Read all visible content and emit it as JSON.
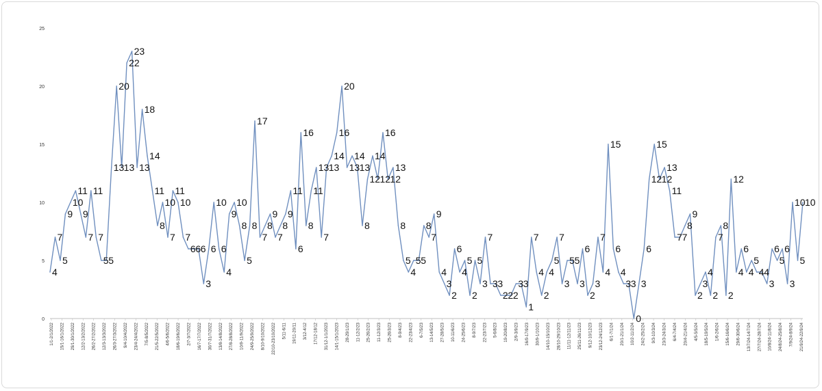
{
  "chart_data": {
    "type": "line",
    "ylim": [
      0,
      25
    ],
    "yticks": [
      0,
      5,
      10,
      15,
      20,
      25
    ],
    "grid": false,
    "legend": "none",
    "series_color": "#6f8fbf",
    "x_tick_labels": [
      "1/1-2/1/2022",
      "15/1-16/1/2022",
      "29/1-30/1/2022",
      "12/2-13/2/2022",
      "26/2-27/2/2022",
      "12/3-13/3/2022",
      "26/3-27/3/2022",
      "9/4-10/4/2022",
      "23/4-24/4/2022",
      "7/5-8/5/2022",
      "21/5-22/5/2022",
      "4/6-5/6/2022",
      "18/6-19/6/2022",
      "2/7-3/7/2022",
      "16/7-17/7/2022",
      "30/7-31/7/2022",
      "13/8-14/8/2022",
      "27/8-28/8/2022",
      "10/9-11/9/2022",
      "24/9-25/9/2022",
      "8/10-9/10/2022",
      "22/10-23/10/2022",
      "5/11-6/11",
      "19/11-20/11",
      "3/12-4/12",
      "17/12-18/12",
      "31/12-1/1/2023",
      "14/1-15/1/2023",
      "28-29/1/23",
      "11-12/2/23",
      "25-26/2/23",
      "11-12/3/23",
      "25-26/3/23",
      "8-9/4/23",
      "22-23/4/23",
      "6-7/5/23",
      "13-14/5/23",
      "27-28/5/23",
      "10-11/6/23",
      "24-25/6/23",
      "8-9/7/23",
      "22-23/7/23",
      "5-6/8/23",
      "19-20/8/23",
      "2/9-3/9/23",
      "16/9-17/9/23",
      "30/9-1/10/23",
      "14/10-15/10/23",
      "28/10-29/10/23",
      "11/11-12/11/23",
      "25/11-26/11/23",
      "9/12-10/12/23",
      "23/12-24/12/23",
      "6/1-7/1/24",
      "20/1-21/1/24",
      "10/2-11/2/24",
      "24/2-25/2/24",
      "9/3-10/3/24",
      "23/3-24/3/24",
      "6/4-7/4/24",
      "20/4-21/4/24",
      "4/5-5/5/24",
      "18/5-19/5/24",
      "1/6-2/6/24",
      "15/6-16/6/24",
      "29/6-30/6/24",
      "13/7/24-14/7/24",
      "27/7/24-28/7/24",
      "10/8/24-11/8/24",
      "24/8/24-25/8/24",
      "7/9/24-8/9/24",
      "21/9/24-22/9/24"
    ],
    "series": [
      {
        "values": [
          4,
          7,
          5,
          9,
          10,
          11,
          9,
          7,
          11,
          7,
          5,
          5,
          13,
          20,
          13,
          22,
          23,
          13,
          18,
          14,
          11,
          8,
          10,
          7,
          11,
          10,
          7,
          6,
          6,
          6,
          3,
          6,
          10,
          6,
          4,
          9,
          10,
          8,
          5,
          8,
          17,
          7,
          8,
          9,
          7,
          8,
          9,
          11,
          6,
          16,
          8,
          11,
          13,
          7,
          13,
          14,
          16,
          20,
          13,
          14,
          13,
          8,
          12,
          14,
          12,
          16,
          12,
          13,
          8,
          5,
          4,
          5,
          5,
          8,
          7,
          9,
          4,
          3,
          2,
          6,
          4,
          5,
          2,
          5,
          3,
          7,
          3,
          3,
          2,
          2,
          2,
          3,
          3,
          1,
          7,
          4,
          2,
          4,
          5,
          7,
          3,
          5,
          5,
          3,
          6,
          2,
          3,
          7,
          4,
          15,
          6,
          4,
          3,
          3,
          0,
          3,
          6,
          12,
          15,
          12,
          13,
          11,
          7,
          7,
          8,
          9,
          2,
          3,
          4,
          2,
          7,
          8,
          2,
          12,
          4,
          6,
          4,
          5,
          4,
          4,
          3,
          6,
          5,
          6,
          3,
          10,
          5,
          10
        ],
        "labels": [
          "4",
          "7",
          "5",
          "9",
          "10",
          "11",
          "9",
          "7",
          "11",
          "7",
          "5",
          "5",
          "13",
          "20",
          "13",
          "22",
          "23",
          "13",
          "18",
          "14",
          "11",
          "8",
          "10",
          "7",
          "11",
          "10",
          "7",
          "6",
          "6",
          "6",
          "3",
          "6",
          "10",
          "6",
          "4",
          "9",
          "10",
          "8",
          "5",
          "8",
          "17",
          "7",
          "8",
          "9",
          "7",
          "8",
          "9",
          "11",
          "6",
          "16",
          "8",
          "11",
          "13",
          "7",
          "13",
          "14",
          "16",
          "20",
          "13",
          "14",
          "13",
          "8",
          "12",
          "14",
          "12",
          "16",
          "12",
          "13",
          "8",
          "5",
          "4",
          "5",
          "5",
          "8",
          "7",
          "9",
          "4",
          "3",
          "2",
          "6",
          "4",
          "5",
          "2",
          "5",
          "3",
          "7",
          "3",
          "3",
          "2",
          "2",
          "2",
          "3",
          "3",
          "1",
          "7",
          "4",
          "2",
          "4",
          "5",
          "7",
          "3",
          "5",
          "5",
          "3",
          "6",
          "2",
          "3",
          "7",
          "4",
          "15",
          "6",
          "4",
          "3",
          "3",
          "0",
          "3",
          "6",
          "12",
          "15",
          "12",
          "13",
          "11",
          "7",
          "7",
          "8",
          "9",
          "2",
          "3",
          "4",
          "2",
          "7",
          "8",
          "2",
          "12",
          "4",
          "6",
          "4",
          "5",
          "4",
          "4",
          "3",
          "6",
          "5",
          "6",
          "3",
          "10",
          "5",
          "10"
        ]
      }
    ]
  }
}
